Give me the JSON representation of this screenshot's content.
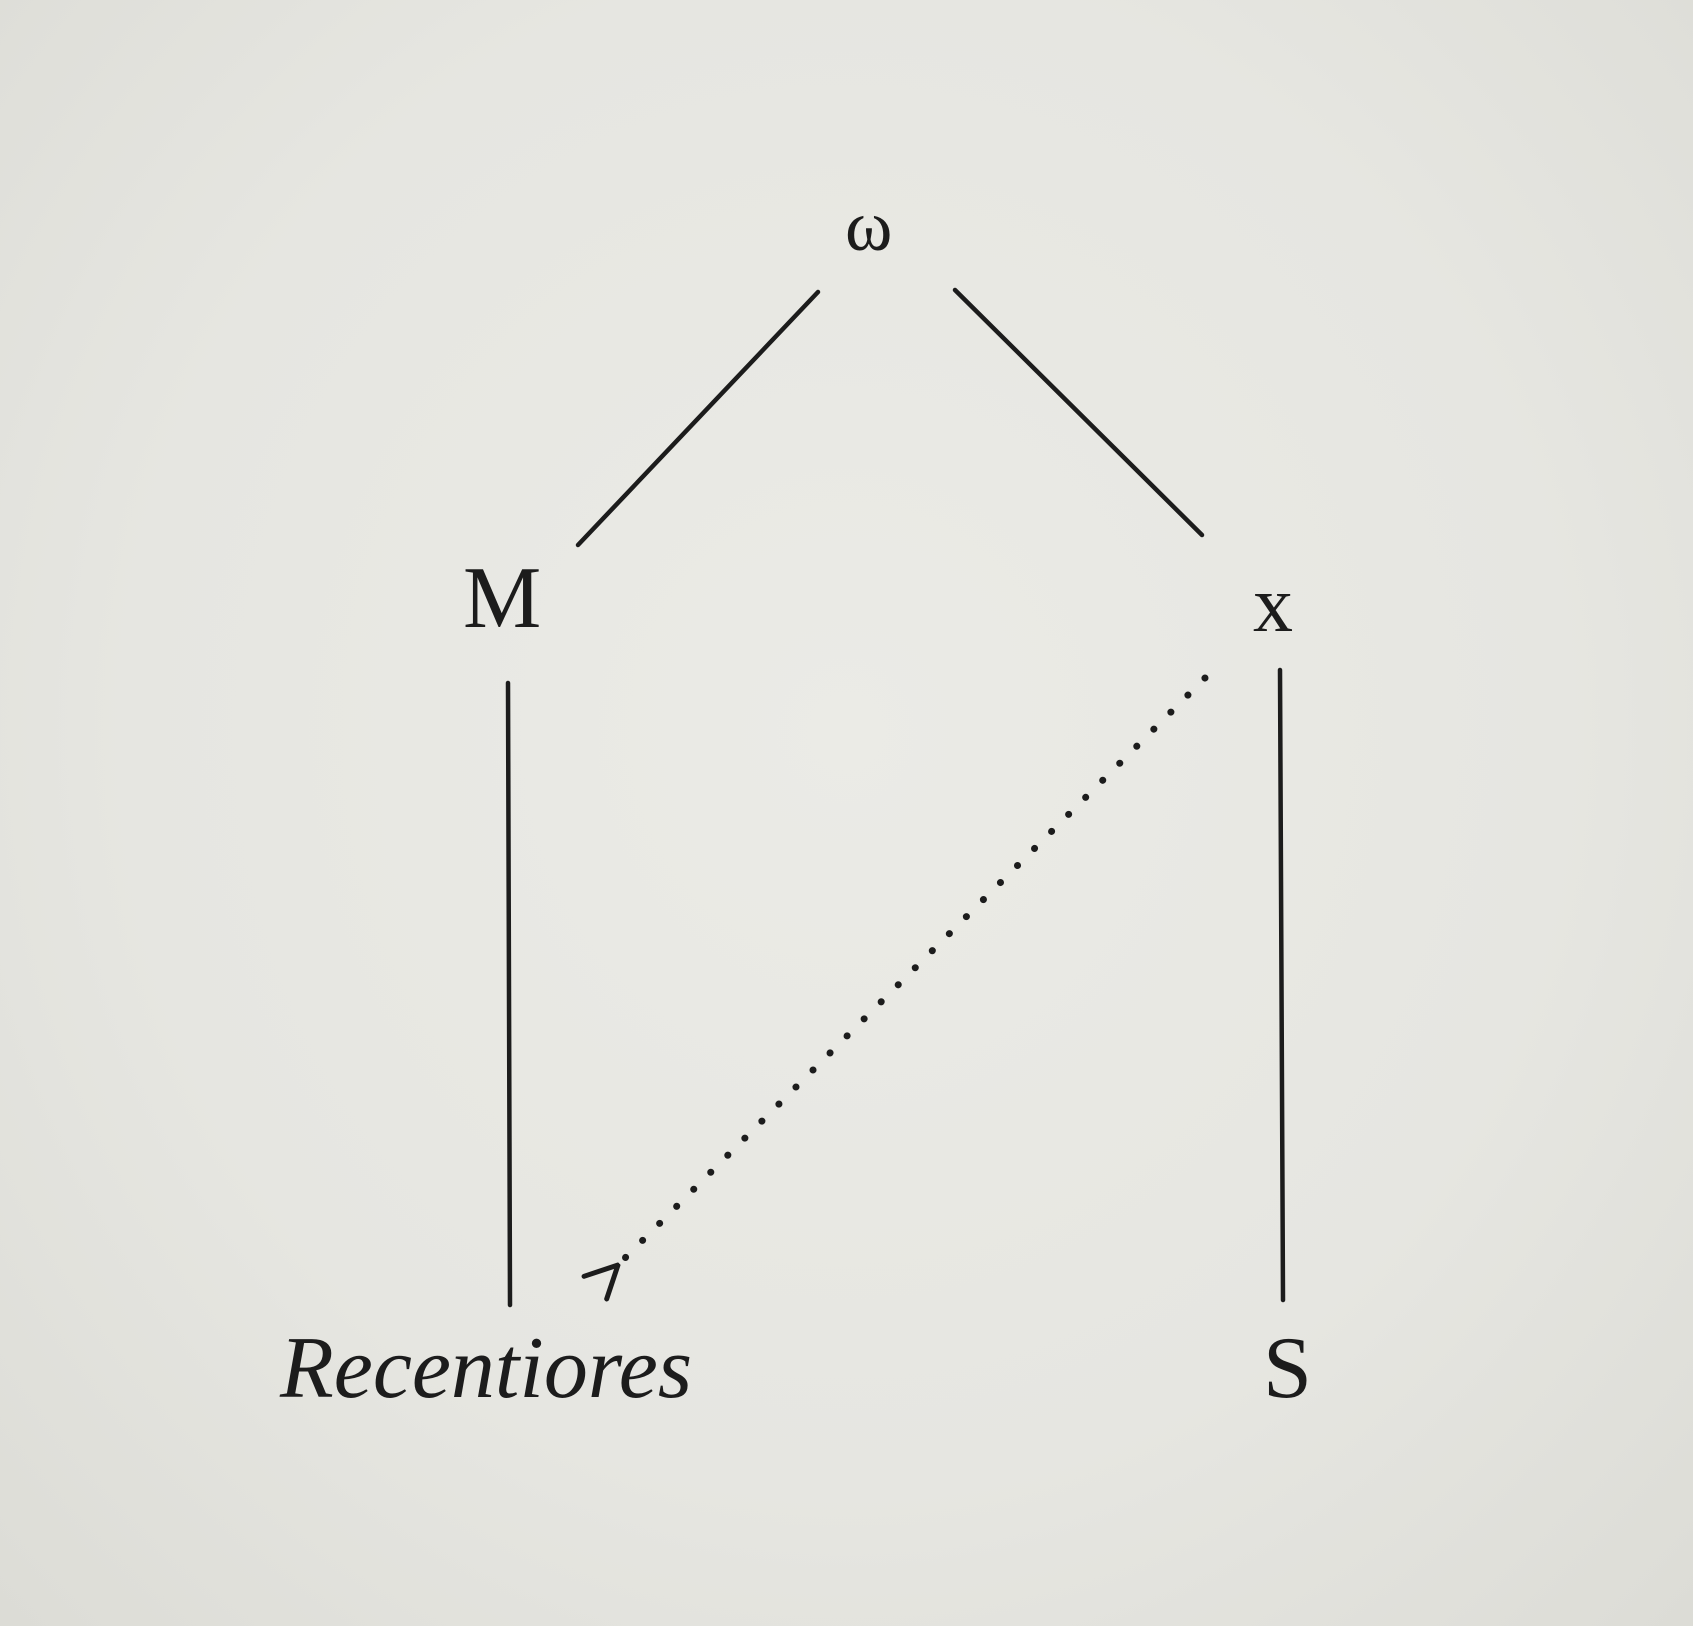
{
  "diagram": {
    "nodes": {
      "root": "ω",
      "left": "M",
      "right": "x",
      "bottom_left": "Recentiores",
      "bottom_right": "S"
    },
    "edges": [
      {
        "from": "ω",
        "to": "M",
        "style": "solid"
      },
      {
        "from": "ω",
        "to": "x",
        "style": "solid"
      },
      {
        "from": "M",
        "to": "Recentiores",
        "style": "solid"
      },
      {
        "from": "x",
        "to": "S",
        "style": "solid"
      },
      {
        "from": "x",
        "to": "Recentiores",
        "style": "dotted",
        "arrow": true
      }
    ]
  },
  "colors": {
    "paper": "#e9e9e4",
    "ink": "#1c1c1c"
  }
}
